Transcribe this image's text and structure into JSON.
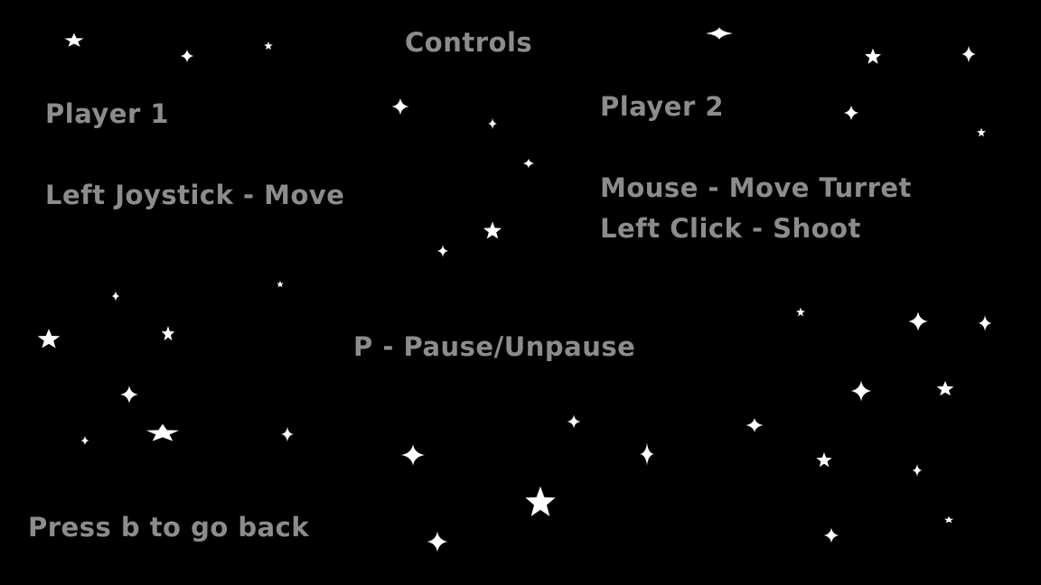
{
  "screen": {
    "title": "Controls",
    "player1": {
      "heading": "Player 1",
      "controls": [
        "Left Joystick - Move"
      ]
    },
    "player2": {
      "heading": "Player 2",
      "controls": [
        "Mouse - Move Turret",
        "Left Click - Shoot"
      ]
    },
    "pause_hint": "P - Pause/Unpause",
    "back_hint": "Press b to go back"
  },
  "colors": {
    "background": "#000000",
    "text": "#8c8c8c",
    "stars": "#ffffff"
  },
  "decoration": {
    "background_icon": "star-icon"
  }
}
